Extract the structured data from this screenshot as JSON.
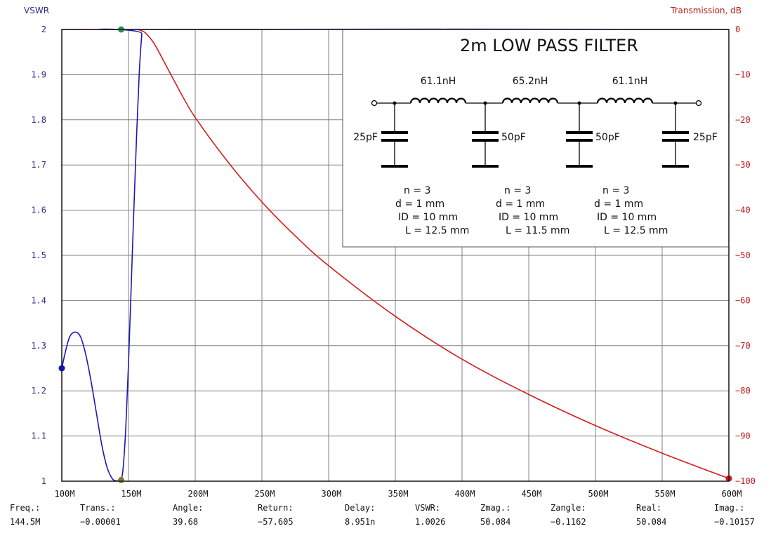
{
  "colors": {
    "vswr": "#1a1ab4",
    "transmission": "#d21e1e",
    "grid": "#808080",
    "left_axis_text": "#2b2b8c",
    "right_axis_text": "#c01818",
    "marker_green": "#2e8b57"
  },
  "left_axis_title": "VSWR",
  "right_axis_title": "Transmission, dB",
  "chart_data": {
    "type": "line",
    "title": "2m LOW PASS FILTER",
    "grid": true,
    "x": [
      100,
      110,
      120,
      130,
      140,
      144.5,
      150,
      160,
      170,
      180,
      190,
      200,
      225,
      250,
      275,
      300,
      350,
      400,
      450,
      500,
      550,
      600
    ],
    "x_unit": "MHz",
    "x_ticks": [
      "100M",
      "150M",
      "200M",
      "250M",
      "300M",
      "350M",
      "400M",
      "450M",
      "500M",
      "550M",
      "600M"
    ],
    "xlim": [
      100,
      600
    ],
    "y_left": {
      "label": "VSWR",
      "ylim": [
        1,
        2
      ],
      "ticks": [
        "2",
        "1.9",
        "1.8",
        "1.7",
        "1.6",
        "1.5",
        "1.4",
        "1.3",
        "1.2",
        "1.1",
        "1"
      ]
    },
    "y_right": {
      "label": "Transmission, dB",
      "ylim": [
        -100,
        0
      ],
      "ticks": [
        "0",
        "−10",
        "−20",
        "−30",
        "−40",
        "−50",
        "−60",
        "−70",
        "−80",
        "−90",
        "−100"
      ]
    },
    "series": [
      {
        "name": "VSWR",
        "axis": "left",
        "x": [
          100,
          103,
          106,
          110,
          114,
          118,
          122,
          126,
          130,
          134,
          138,
          141,
          143,
          144.5,
          146,
          148,
          150,
          152,
          154,
          156,
          158,
          160,
          161,
          600
        ],
        "y": [
          1.25,
          1.29,
          1.32,
          1.33,
          1.32,
          1.28,
          1.22,
          1.15,
          1.08,
          1.03,
          1.005,
          1.001,
          1.001,
          1.0026,
          1.03,
          1.12,
          1.26,
          1.43,
          1.6,
          1.76,
          1.9,
          1.99,
          2.0,
          2.0
        ]
      },
      {
        "name": "Transmission, dB",
        "axis": "right",
        "x": [
          100,
          150,
          160,
          165,
          170,
          180,
          190,
          200,
          225,
          250,
          275,
          300,
          350,
          400,
          450,
          500,
          550,
          600
        ],
        "y": [
          0,
          0,
          -0.3,
          -1.5,
          -3.5,
          -9,
          -14.5,
          -19.5,
          -29.5,
          -38.2,
          -45.7,
          -52.3,
          -63.5,
          -73,
          -80.8,
          -87.7,
          -93.8,
          -99.4
        ]
      }
    ],
    "markers": [
      {
        "series": "VSWR",
        "x": 100,
        "y": 1.25,
        "color": "#1010e0"
      },
      {
        "series": "VSWR",
        "x": 144.5,
        "y": 1.0026,
        "color": "#8a7a3a"
      },
      {
        "series": "Transmission, dB",
        "x": 144.5,
        "y": 0,
        "color": "#2e8b57"
      },
      {
        "series": "Transmission, dB",
        "x": 600,
        "y": -99.4,
        "color": "#e01010"
      }
    ]
  },
  "schematic": {
    "title": "2m LOW PASS FILTER",
    "inductors": [
      "61.1nH",
      "65.2nH",
      "61.1nH"
    ],
    "capacitors": [
      "25pF",
      "50pF",
      "50pF",
      "25pF"
    ],
    "coils": [
      {
        "n": "n = 3",
        "d": "d = 1 mm",
        "id": "ID = 10 mm",
        "l": "L = 12.5 mm"
      },
      {
        "n": "n = 3",
        "d": "d = 1 mm",
        "id": "ID = 10 mm",
        "l": "L = 11.5 mm"
      },
      {
        "n": "n = 3",
        "d": "d = 1 mm",
        "id": "ID = 10 mm",
        "l": "L = 12.5 mm"
      }
    ]
  },
  "readout": {
    "labels": [
      "Freq.:",
      "Trans.:",
      "Angle:",
      "Return:",
      "Delay:",
      "VSWR:",
      "Zmag.:",
      "Zangle:",
      "Real:",
      "Imag.:"
    ],
    "values": [
      "144.5M",
      "−0.00001",
      "39.68",
      "−57.605",
      "8.951n",
      "1.0026",
      "50.084",
      "−0.1162",
      "50.084",
      "−0.10157"
    ]
  }
}
